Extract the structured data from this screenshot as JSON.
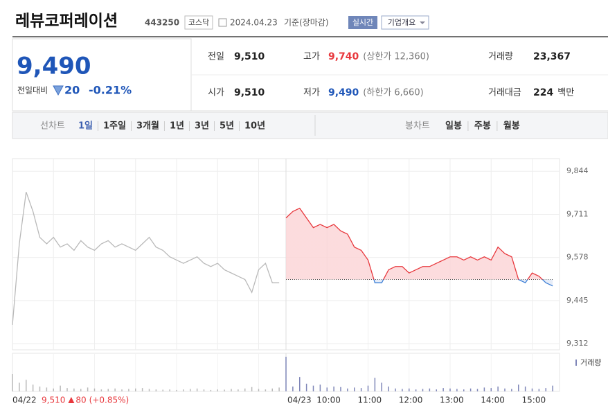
{
  "header": {
    "name": "레뷰코퍼레이션",
    "code": "443250",
    "market": "코스닥",
    "date": "2024.04.23",
    "basis": "기준(장마감)",
    "realtime": "실시간",
    "overview": "기업개요"
  },
  "quote": {
    "price": "9,490",
    "change_label": "전일대비",
    "change": "20",
    "change_pct": "-0.21%",
    "stats": [
      {
        "label": "전일",
        "value": "9,510"
      },
      {
        "label": "고가",
        "value": "9,740",
        "note": "(상한가 12,360)"
      },
      {
        "label": "거래량",
        "value": "23,367"
      },
      {
        "label": "시가",
        "value": "9,510"
      },
      {
        "label": "저가",
        "value": "9,490",
        "note": "(하한가 6,660)"
      },
      {
        "label": "거래대금",
        "value": "224",
        "unit": "백만"
      }
    ]
  },
  "tabs": {
    "line_label": "선차트",
    "line_periods": [
      "1일",
      "1주일",
      "3개월",
      "1년",
      "3년",
      "5년",
      "10년"
    ],
    "candle_label": "봉차트",
    "candle_periods": [
      "일봉",
      "주봉",
      "월봉"
    ]
  },
  "chart_data": {
    "type": "line",
    "x": [
      "04/22",
      null,
      null,
      null,
      null,
      null,
      null,
      null,
      null,
      null,
      null,
      null,
      null,
      null,
      null,
      null,
      null,
      null,
      null,
      null,
      null,
      null,
      null,
      null,
      null,
      null,
      null,
      null,
      null,
      null,
      null,
      null,
      null,
      null,
      null,
      null,
      null,
      null,
      null,
      null,
      "04/23",
      null,
      null,
      null,
      null,
      null,
      "10:00",
      null,
      null,
      null,
      null,
      null,
      "11:00",
      null,
      null,
      null,
      null,
      null,
      "12:00",
      null,
      null,
      null,
      null,
      null,
      "13:00",
      null,
      null,
      null,
      null,
      null,
      "14:00",
      null,
      null,
      null,
      null,
      null,
      "15:00",
      null,
      null,
      null
    ],
    "series": [
      {
        "color": "#b9b9b9",
        "values": [
          9370,
          9620,
          9780,
          9720,
          9640,
          9620,
          9640,
          9610,
          9620,
          9600,
          9630,
          9610,
          9600,
          9620,
          9630,
          9610,
          9620,
          9610,
          9600,
          9620,
          9640,
          9610,
          9600,
          9580,
          9570,
          9560,
          9570,
          9580,
          9560,
          9550,
          9560,
          9540,
          9530,
          9520,
          9510,
          9470,
          9540,
          9560,
          9500,
          9500,
          null,
          null,
          null,
          null,
          null,
          null,
          null,
          null,
          null,
          null,
          null,
          null,
          null,
          null,
          null,
          null,
          null,
          null,
          null,
          null,
          null,
          null,
          null,
          null,
          null,
          null,
          null,
          null,
          null,
          null,
          null,
          null,
          null,
          null,
          null,
          null,
          null,
          null,
          null,
          null
        ]
      },
      {
        "color": "#e8383d",
        "down_color": "#3d7fd6",
        "fill": "#fbd3d5",
        "values": [
          null,
          null,
          null,
          null,
          null,
          null,
          null,
          null,
          null,
          null,
          null,
          null,
          null,
          null,
          null,
          null,
          null,
          null,
          null,
          null,
          null,
          null,
          null,
          null,
          null,
          null,
          null,
          null,
          null,
          null,
          null,
          null,
          null,
          null,
          null,
          null,
          null,
          null,
          null,
          null,
          9700,
          9720,
          9730,
          9700,
          9670,
          9680,
          9670,
          9680,
          9660,
          9650,
          9610,
          9600,
          9570,
          9500,
          9500,
          9540,
          9550,
          9550,
          9530,
          9540,
          9550,
          9550,
          9560,
          9570,
          9580,
          9580,
          9570,
          9580,
          9570,
          9580,
          9570,
          9610,
          9590,
          9580,
          9510,
          9500,
          9530,
          9520,
          9500,
          9490
        ]
      }
    ],
    "baseline": 9510,
    "ylim": [
      9293,
      9883
    ],
    "yticks": [
      {
        "value": 9844,
        "label": "9,844"
      },
      {
        "value": 9711,
        "label": "9,711"
      },
      {
        "value": 9578,
        "label": "9,578"
      },
      {
        "value": 9445,
        "label": "9,445"
      },
      {
        "value": 9312,
        "label": "9,312"
      }
    ],
    "grid": true,
    "volume": {
      "label": "거래량",
      "color": "#7f86b8",
      "values": [
        1800,
        900,
        1200,
        700,
        500,
        400,
        300,
        600,
        350,
        300,
        250,
        400,
        300,
        200,
        250,
        300,
        200,
        250,
        300,
        350,
        250,
        200,
        180,
        200,
        150,
        200,
        250,
        300,
        200,
        150,
        200,
        180,
        250,
        200,
        300,
        450,
        250,
        200,
        300,
        400,
        3600,
        500,
        1500,
        800,
        600,
        700,
        400,
        500,
        450,
        300,
        400,
        350,
        600,
        1400,
        900,
        500,
        300,
        250,
        300,
        200,
        250,
        300,
        200,
        350,
        300,
        250,
        200,
        300,
        250,
        400,
        350,
        500,
        300,
        250,
        700,
        500,
        300,
        250,
        350,
        600
      ]
    },
    "summary": {
      "close": "9,510",
      "change": "80",
      "change_pct": "(+0.85%)"
    }
  }
}
